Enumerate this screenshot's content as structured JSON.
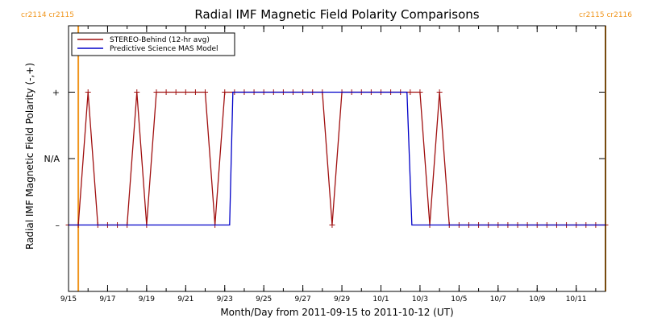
{
  "chart_data": {
    "type": "line",
    "title": "Radial IMF Magnetic Field Polarity Comparisons",
    "xlabel": "Month/Day from 2011-09-15 to 2011-10-12 (UT)",
    "ylabel": "Radial IMF Magnetic Field Polarity (-,+)",
    "xlim": [
      "2011-09-15",
      "2011-10-12"
    ],
    "ylim": [
      -2,
      2
    ],
    "xticks": [
      {
        "value": "2011-09-15",
        "label": "9/15"
      },
      {
        "value": "2011-09-17",
        "label": "9/17"
      },
      {
        "value": "2011-09-19",
        "label": "9/19"
      },
      {
        "value": "2011-09-21",
        "label": "9/21"
      },
      {
        "value": "2011-09-23",
        "label": "9/23"
      },
      {
        "value": "2011-09-25",
        "label": "9/25"
      },
      {
        "value": "2011-09-27",
        "label": "9/27"
      },
      {
        "value": "2011-09-29",
        "label": "9/29"
      },
      {
        "value": "2011-10-01",
        "label": "10/1"
      },
      {
        "value": "2011-10-03",
        "label": "10/3"
      },
      {
        "value": "2011-10-05",
        "label": "10/5"
      },
      {
        "value": "2011-10-07",
        "label": "10/7"
      },
      {
        "value": "2011-10-09",
        "label": "10/9"
      },
      {
        "value": "2011-10-11",
        "label": "10/11"
      }
    ],
    "yticks": [
      {
        "value": -1,
        "label": "–"
      },
      {
        "value": 0,
        "label": "N/A"
      },
      {
        "value": 1,
        "label": "+"
      }
    ],
    "legend_position": "top-left",
    "grid": false,
    "carrington_markers": [
      {
        "x": "2011-09-15T12:00",
        "label": "cr2114 cr2115",
        "color": "#f0961e"
      },
      {
        "x": "2011-10-12T12:00",
        "label": "cr2115 cr2116",
        "color": "#f0961e"
      }
    ],
    "series": [
      {
        "name": "STEREO-Behind (12-hr avg)",
        "color": "#a01010",
        "marker": "plus",
        "x": [
          "2011-09-15T00:00",
          "2011-09-15T12:00",
          "2011-09-16T00:00",
          "2011-09-16T12:00",
          "2011-09-17T00:00",
          "2011-09-17T12:00",
          "2011-09-18T00:00",
          "2011-09-18T12:00",
          "2011-09-19T00:00",
          "2011-09-19T12:00",
          "2011-09-20T00:00",
          "2011-09-20T12:00",
          "2011-09-21T00:00",
          "2011-09-21T12:00",
          "2011-09-22T00:00",
          "2011-09-22T12:00",
          "2011-09-23T00:00",
          "2011-09-23T12:00",
          "2011-09-24T00:00",
          "2011-09-24T12:00",
          "2011-09-25T00:00",
          "2011-09-25T12:00",
          "2011-09-26T00:00",
          "2011-09-26T12:00",
          "2011-09-27T00:00",
          "2011-09-27T12:00",
          "2011-09-28T00:00",
          "2011-09-28T12:00",
          "2011-09-29T00:00",
          "2011-09-29T12:00",
          "2011-09-30T00:00",
          "2011-09-30T12:00",
          "2011-10-01T00:00",
          "2011-10-01T12:00",
          "2011-10-02T00:00",
          "2011-10-02T12:00",
          "2011-10-03T00:00",
          "2011-10-03T12:00",
          "2011-10-04T00:00",
          "2011-10-04T12:00",
          "2011-10-05T00:00",
          "2011-10-05T12:00",
          "2011-10-06T00:00",
          "2011-10-06T12:00",
          "2011-10-07T00:00",
          "2011-10-07T12:00",
          "2011-10-08T00:00",
          "2011-10-08T12:00",
          "2011-10-09T00:00",
          "2011-10-09T12:00",
          "2011-10-10T00:00",
          "2011-10-10T12:00",
          "2011-10-11T00:00",
          "2011-10-11T12:00",
          "2011-10-12T00:00",
          "2011-10-12T12:00"
        ],
        "values": [
          -1,
          -1,
          1,
          -1,
          -1,
          -1,
          -1,
          1,
          -1,
          1,
          1,
          1,
          1,
          1,
          1,
          -1,
          1,
          1,
          1,
          1,
          1,
          1,
          1,
          1,
          1,
          1,
          1,
          -1,
          1,
          1,
          1,
          1,
          1,
          1,
          1,
          1,
          1,
          -1,
          1,
          -1,
          -1,
          -1,
          -1,
          -1,
          -1,
          -1,
          -1,
          -1,
          -1,
          -1,
          -1,
          -1,
          -1,
          -1,
          -1,
          -1
        ]
      },
      {
        "name": "Predictive Science MAS Model",
        "color": "#0000c8",
        "marker": "none",
        "x": [
          "2011-09-15T00:00",
          "2011-09-23T06:00",
          "2011-09-23T10:00",
          "2011-10-02T08:00",
          "2011-10-02T14:00",
          "2011-10-12T12:00"
        ],
        "values": [
          -1,
          -1,
          1,
          1,
          -1,
          -1
        ]
      }
    ]
  }
}
